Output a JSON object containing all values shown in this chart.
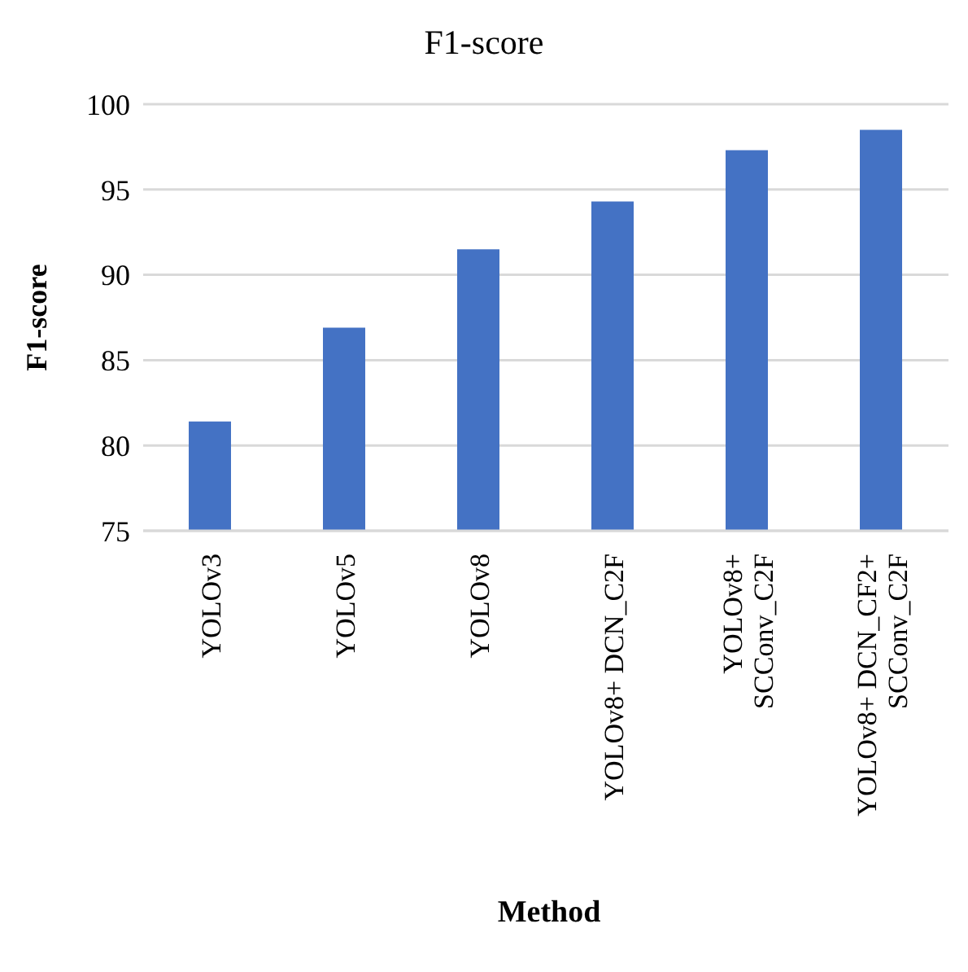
{
  "chart_data": {
    "type": "bar",
    "title": "F1-score",
    "xlabel": "Method",
    "ylabel": "F1-score",
    "categories": [
      "YOLOv3",
      "YOLOv5",
      "YOLOv8",
      "YOLOv8+ DCN_C2F",
      "YOLOv8+ SCConv_C2F",
      "YOLOv8+ DCN_CF2+ SCConv_C2F"
    ],
    "values": [
      81.4,
      86.9,
      91.5,
      94.3,
      97.3,
      98.5
    ],
    "color": "#4472c4",
    "ylim": [
      75,
      100
    ],
    "yticks": [
      75,
      80,
      85,
      90,
      95,
      100
    ],
    "grid": "y",
    "legend": false
  }
}
